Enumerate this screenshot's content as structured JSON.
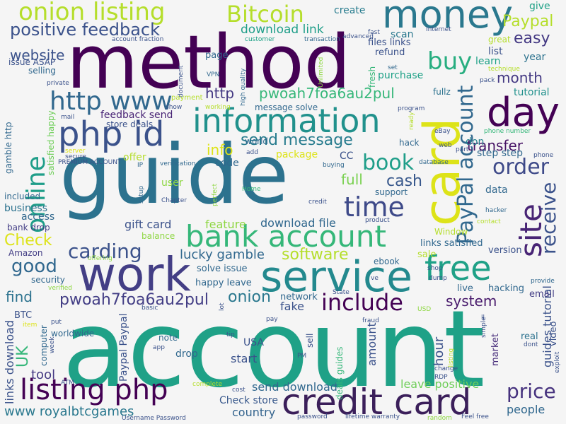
{
  "palette": [
    "#440154",
    "#3b528b",
    "#31688e",
    "#21918c",
    "#1fa187",
    "#35b779",
    "#6ece58",
    "#b5de2b",
    "#fde725"
  ],
  "words": [
    {
      "t": "account",
      "c": "#1fa187"
    },
    {
      "t": "guide",
      "c": "#2c728e"
    },
    {
      "t": "method",
      "c": "#440154"
    },
    {
      "t": "card",
      "c": "#dde318"
    },
    {
      "t": "work",
      "c": "#433e85"
    },
    {
      "t": "money",
      "c": "#2a788e"
    },
    {
      "t": "day",
      "c": "#440154"
    },
    {
      "t": "service",
      "c": "#23898e"
    },
    {
      "t": "credit card",
      "c": "#3b1f5a"
    },
    {
      "t": "bank account",
      "c": "#35b779"
    },
    {
      "t": "information",
      "c": "#21918c"
    },
    {
      "t": "php id",
      "c": "#3b528b"
    },
    {
      "t": "free",
      "c": "#1fa187"
    },
    {
      "t": "PayPal account",
      "c": "#31688e"
    },
    {
      "t": "site",
      "c": "#482475"
    },
    {
      "t": "listing php",
      "c": "#440154"
    },
    {
      "t": "onion listing",
      "c": "#b5de2b"
    },
    {
      "t": "Bitcoin",
      "c": "#b5de2b"
    },
    {
      "t": "online",
      "c": "#1f9e89"
    },
    {
      "t": "time",
      "c": "#3e4a89"
    },
    {
      "t": "http www",
      "c": "#31688e"
    },
    {
      "t": "include",
      "c": "#440154"
    },
    {
      "t": "receive",
      "c": "#3b528b"
    },
    {
      "t": "order",
      "c": "#3e4a89"
    },
    {
      "t": "carding",
      "c": "#3b528b"
    },
    {
      "t": "book",
      "c": "#1f9e89"
    },
    {
      "t": "buy",
      "c": "#28ae80"
    },
    {
      "t": "price",
      "c": "#46327e"
    },
    {
      "t": "positive feedback",
      "c": "#3b528b"
    },
    {
      "t": "pwoah7foa6au2pul",
      "c": "#35b779"
    },
    {
      "t": "pwoah7foa6au2pul",
      "c": "#433e85"
    },
    {
      "t": "Paypal",
      "c": "#b5de2b"
    },
    {
      "t": "easy",
      "c": "#443983"
    },
    {
      "t": "send message",
      "c": "#287c8e"
    },
    {
      "t": "good",
      "c": "#31688e"
    },
    {
      "t": "software",
      "c": "#b5de2b"
    },
    {
      "t": "onion",
      "c": "#2a788e"
    },
    {
      "t": "Check",
      "c": "#dde318"
    },
    {
      "t": "UK",
      "c": "#35b779"
    },
    {
      "t": "month",
      "c": "#443983"
    },
    {
      "t": "cash",
      "c": "#38588c"
    },
    {
      "t": "website",
      "c": "#3b528b"
    },
    {
      "t": "system",
      "c": "#481a6c"
    },
    {
      "t": "download link",
      "c": "#1f9e89"
    },
    {
      "t": "info",
      "c": "#dde318"
    },
    {
      "t": "find",
      "c": "#2c728e"
    },
    {
      "t": "http",
      "c": "#443983"
    },
    {
      "t": "lucky gamble",
      "c": "#31688e"
    },
    {
      "t": "full",
      "c": "#7ad151"
    },
    {
      "t": "transfer",
      "c": "#471365"
    },
    {
      "t": "hour",
      "c": "#3b528b"
    },
    {
      "t": "www royalbtcgames",
      "c": "#2a788e"
    },
    {
      "t": "country",
      "c": "#33638d"
    },
    {
      "t": "leave positive",
      "c": "#6ece58"
    },
    {
      "t": "send download",
      "c": "#31688e"
    },
    {
      "t": "Check store",
      "c": "#38588c"
    },
    {
      "t": "gift card",
      "c": "#3b528b"
    },
    {
      "t": "download file",
      "c": "#31688e"
    },
    {
      "t": "feature",
      "c": "#8fd744"
    },
    {
      "t": "people",
      "c": "#31688e"
    },
    {
      "t": "amount",
      "c": "#3b528b"
    },
    {
      "t": "fake",
      "c": "#3b528b"
    },
    {
      "t": "start",
      "c": "#3b528b"
    },
    {
      "t": "tool",
      "c": "#443983"
    },
    {
      "t": "guides tutorial",
      "c": "#3b528b"
    },
    {
      "t": "links download",
      "c": "#3b528b"
    },
    {
      "t": "Paypal Paypal",
      "c": "#3b528b"
    },
    {
      "t": "create",
      "c": "#287c8e"
    },
    {
      "t": "give",
      "c": "#1fa187"
    },
    {
      "t": "Amazon",
      "c": "#433e85"
    },
    {
      "t": "USA",
      "c": "#3b528b"
    },
    {
      "t": "code",
      "c": "#31688e"
    },
    {
      "t": "user",
      "c": "#8fd744"
    },
    {
      "t": "scan",
      "c": "#2a788e"
    },
    {
      "t": "year",
      "c": "#2c728e"
    },
    {
      "t": "list",
      "c": "#3b528b"
    },
    {
      "t": "learn",
      "c": "#1fa187"
    },
    {
      "t": "tutorial",
      "c": "#21918c"
    },
    {
      "t": "don",
      "c": "#26828e"
    },
    {
      "t": "step step",
      "c": "#31688e"
    },
    {
      "t": "data",
      "c": "#31688e"
    },
    {
      "t": "links satisfied",
      "c": "#31688e"
    },
    {
      "t": "version",
      "c": "#3b528b"
    },
    {
      "t": "sale",
      "c": "#b5de2b"
    },
    {
      "t": "live",
      "c": "#31688e"
    },
    {
      "t": "hacking",
      "c": "#31688e"
    },
    {
      "t": "email",
      "c": "#433e85"
    },
    {
      "t": "real",
      "c": "#2c728e"
    },
    {
      "t": "market",
      "c": "#472d7b"
    },
    {
      "t": "video",
      "c": "#3b528b"
    },
    {
      "t": "page",
      "c": "#31688e"
    },
    {
      "t": "files links",
      "c": "#3b528b"
    },
    {
      "t": "refund",
      "c": "#3b528b"
    },
    {
      "t": "purchase",
      "c": "#1fa187"
    },
    {
      "t": "message solve",
      "c": "#31688e"
    },
    {
      "t": "issue ASAP",
      "c": "#3b528b"
    },
    {
      "t": "selling",
      "c": "#31688e"
    },
    {
      "t": "feedback send",
      "c": "#482475"
    },
    {
      "t": "store deals",
      "c": "#3b528b"
    },
    {
      "t": "offer",
      "c": "#b5de2b"
    },
    {
      "t": "package",
      "c": "#dde318"
    },
    {
      "t": "CC",
      "c": "#3b528b"
    },
    {
      "t": "world",
      "c": "#31688e"
    },
    {
      "t": "hack",
      "c": "#31688e"
    },
    {
      "t": "support",
      "c": "#31688e"
    },
    {
      "t": "business",
      "c": "#2c728e"
    },
    {
      "t": "access",
      "c": "#31688e"
    },
    {
      "t": "bank drop",
      "c": "#433e85"
    },
    {
      "t": "included",
      "c": "#31688e"
    },
    {
      "t": "balance",
      "c": "#8fd744"
    },
    {
      "t": "happy leave",
      "c": "#31688e"
    },
    {
      "t": "solve issue",
      "c": "#31688e"
    },
    {
      "t": "security",
      "c": "#31688e"
    },
    {
      "t": "BTC",
      "c": "#3b528b"
    },
    {
      "t": "network",
      "c": "#31688e"
    },
    {
      "t": "ebook",
      "c": "#31688e"
    },
    {
      "t": "drop",
      "c": "#31688e"
    },
    {
      "t": "note",
      "c": "#31688e"
    },
    {
      "t": "worldwide",
      "c": "#31688e"
    },
    {
      "t": "computer",
      "c": "#31688e"
    },
    {
      "t": "gamble http",
      "c": "#31688e"
    },
    {
      "t": "satisfied happy",
      "c": "#6ece58"
    },
    {
      "t": "deals guides",
      "c": "#35b779"
    },
    {
      "t": "sell",
      "c": "#3b528b"
    },
    {
      "t": "fullz",
      "c": "#2c728e"
    },
    {
      "t": "Window",
      "c": "#b5de2b"
    },
    {
      "t": "great",
      "c": "#b5de2b"
    },
    {
      "t": "fresh",
      "c": "#35b779"
    },
    {
      "t": "Internet",
      "c": "#3b528b"
    },
    {
      "t": "advanced",
      "c": "#3b528b"
    },
    {
      "t": "customer",
      "c": "#1fa187"
    },
    {
      "t": "transaction",
      "c": "#31688e"
    },
    {
      "t": "account fraction",
      "c": "#3b528b"
    },
    {
      "t": "fast",
      "c": "#3b528b"
    },
    {
      "t": "private",
      "c": "#3b528b"
    },
    {
      "t": "VPN",
      "c": "#31688e"
    },
    {
      "t": "high quality",
      "c": "#31688e"
    },
    {
      "t": "Unlimited",
      "c": "#8fd744"
    },
    {
      "t": "document",
      "c": "#3b528b"
    },
    {
      "t": "show",
      "c": "#3b528b"
    },
    {
      "t": "payment",
      "c": "#b5de2b"
    },
    {
      "t": "working",
      "c": "#b5de2b"
    },
    {
      "t": "mail",
      "c": "#3b528b"
    },
    {
      "t": "secure",
      "c": "#3b528b"
    },
    {
      "t": "server",
      "c": "#dde318"
    },
    {
      "t": "PREMIUM ACCOUNT",
      "c": "#3b528b"
    },
    {
      "t": "IP",
      "c": "#31688e"
    },
    {
      "t": "verification",
      "c": "#31688e"
    },
    {
      "t": "add",
      "c": "#3b528b"
    },
    {
      "t": "buying",
      "c": "#31688e"
    },
    {
      "t": "database",
      "c": "#31688e"
    },
    {
      "t": "web",
      "c": "#3b528b"
    },
    {
      "t": "part",
      "c": "#3b528b"
    },
    {
      "t": "phone",
      "c": "#3b528b"
    },
    {
      "t": "phone number",
      "c": "#35b779"
    },
    {
      "t": "eBay",
      "c": "#3b528b"
    },
    {
      "t": "program",
      "c": "#3b528b"
    },
    {
      "t": "set",
      "c": "#31688e"
    },
    {
      "t": "ready",
      "c": "#b5de2b"
    },
    {
      "t": "pack",
      "c": "#3b528b"
    },
    {
      "t": "technique",
      "c": "#b5de2b"
    },
    {
      "t": "hacker",
      "c": "#31688e"
    },
    {
      "t": "contact",
      "c": "#b5de2b"
    },
    {
      "t": "provide",
      "c": "#31688e"
    },
    {
      "t": "setup",
      "c": "#31688e"
    },
    {
      "t": "Chapter",
      "c": "#3b528b"
    },
    {
      "t": "perfect",
      "c": "#8fd744"
    },
    {
      "t": "Home",
      "c": "#35b779"
    },
    {
      "t": "credit",
      "c": "#3b528b"
    },
    {
      "t": "product",
      "c": "#3b528b"
    },
    {
      "t": "shop",
      "c": "#3b528b"
    },
    {
      "t": "dump",
      "c": "#3b528b"
    },
    {
      "t": "ve",
      "c": "#3b528b"
    },
    {
      "t": "State",
      "c": "#3b528b"
    },
    {
      "t": "USD",
      "c": "#8fd744"
    },
    {
      "t": "offering",
      "c": "#8fd744"
    },
    {
      "t": "verified",
      "c": "#8fd744"
    },
    {
      "t": "basic",
      "c": "#3b528b"
    },
    {
      "t": "item",
      "c": "#dde318"
    },
    {
      "t": "put",
      "c": "#3b528b"
    },
    {
      "t": "week",
      "c": "#3b528b"
    },
    {
      "t": "pay",
      "c": "#3b528b"
    },
    {
      "t": "tip",
      "c": "#3b528b"
    },
    {
      "t": "app",
      "c": "#3b528b"
    },
    {
      "t": "fraud",
      "c": "#3b528b"
    },
    {
      "t": "listing",
      "c": "#b5de2b"
    },
    {
      "t": "PM",
      "c": "#3b528b"
    },
    {
      "t": "dont",
      "c": "#3b528b"
    },
    {
      "t": "exploit",
      "c": "#3b528b"
    },
    {
      "t": "simple",
      "c": "#3b528b"
    },
    {
      "t": "change",
      "c": "#3b528b"
    },
    {
      "t": "RDP",
      "c": "#3b528b"
    },
    {
      "t": "ll",
      "c": "#3b528b"
    },
    {
      "t": "lot",
      "c": "#3b528b"
    },
    {
      "t": "ATM",
      "c": "#3b528b"
    },
    {
      "t": "complete",
      "c": "#b5de2b"
    },
    {
      "t": "cost",
      "c": "#3b528b"
    },
    {
      "t": "Username Password",
      "c": "#3b528b"
    },
    {
      "t": "password",
      "c": "#3b528b"
    },
    {
      "t": "lifetime warranty",
      "c": "#3b528b"
    },
    {
      "t": "random",
      "c": "#8fd744"
    },
    {
      "t": "Feel free",
      "c": "#3b528b"
    }
  ]
}
